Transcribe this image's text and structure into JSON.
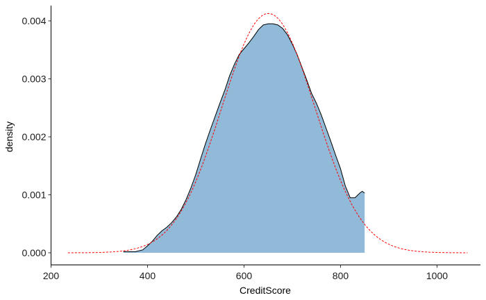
{
  "chart_data": {
    "type": "area",
    "xlabel": "CreditScore",
    "ylabel": "density",
    "xlim": [
      200,
      1090
    ],
    "ylim": [
      0,
      0.0043
    ],
    "x_ticks": [
      200,
      400,
      600,
      800,
      1000
    ],
    "y_ticks": [
      0.0,
      0.001,
      0.002,
      0.003,
      0.004
    ],
    "x_tick_labels": [
      "200",
      "400",
      "600",
      "800",
      "1000"
    ],
    "y_tick_labels": [
      "0.000",
      "0.001",
      "0.002",
      "0.003",
      "0.004"
    ],
    "grid": false,
    "legend": "none",
    "series": [
      {
        "kind": "kernel-density",
        "fill": "#91bad8",
        "stroke": "#000000",
        "x": [
          350,
          375,
          390,
          400,
          410,
          420,
          430,
          440,
          450,
          460,
          470,
          480,
          490,
          500,
          510,
          520,
          530,
          540,
          550,
          560,
          570,
          580,
          590,
          600,
          610,
          620,
          630,
          640,
          650,
          660,
          670,
          680,
          690,
          700,
          710,
          720,
          730,
          740,
          750,
          760,
          770,
          780,
          790,
          800,
          810,
          820,
          830,
          840,
          845,
          850
        ],
        "y": [
          2e-05,
          2e-05,
          5e-05,
          0.00012,
          0.0002,
          0.0003,
          0.00038,
          0.00044,
          0.00052,
          0.00062,
          0.00075,
          0.00092,
          0.00112,
          0.00135,
          0.00162,
          0.00188,
          0.00212,
          0.00235,
          0.00258,
          0.0028,
          0.00305,
          0.00325,
          0.00342,
          0.00352,
          0.00362,
          0.00373,
          0.00385,
          0.00393,
          0.00395,
          0.00395,
          0.00393,
          0.00387,
          0.00376,
          0.0036,
          0.00342,
          0.0032,
          0.00298,
          0.00275,
          0.00258,
          0.00238,
          0.00215,
          0.00192,
          0.00168,
          0.00145,
          0.00115,
          0.00095,
          0.00095,
          0.00103,
          0.00106,
          0.00103
        ]
      },
      {
        "kind": "normal-curve",
        "stroke": "#ff0000",
        "dashed": true,
        "mean": 650.5,
        "sd": 96.65,
        "x_range": [
          235,
          1065
        ]
      }
    ]
  }
}
